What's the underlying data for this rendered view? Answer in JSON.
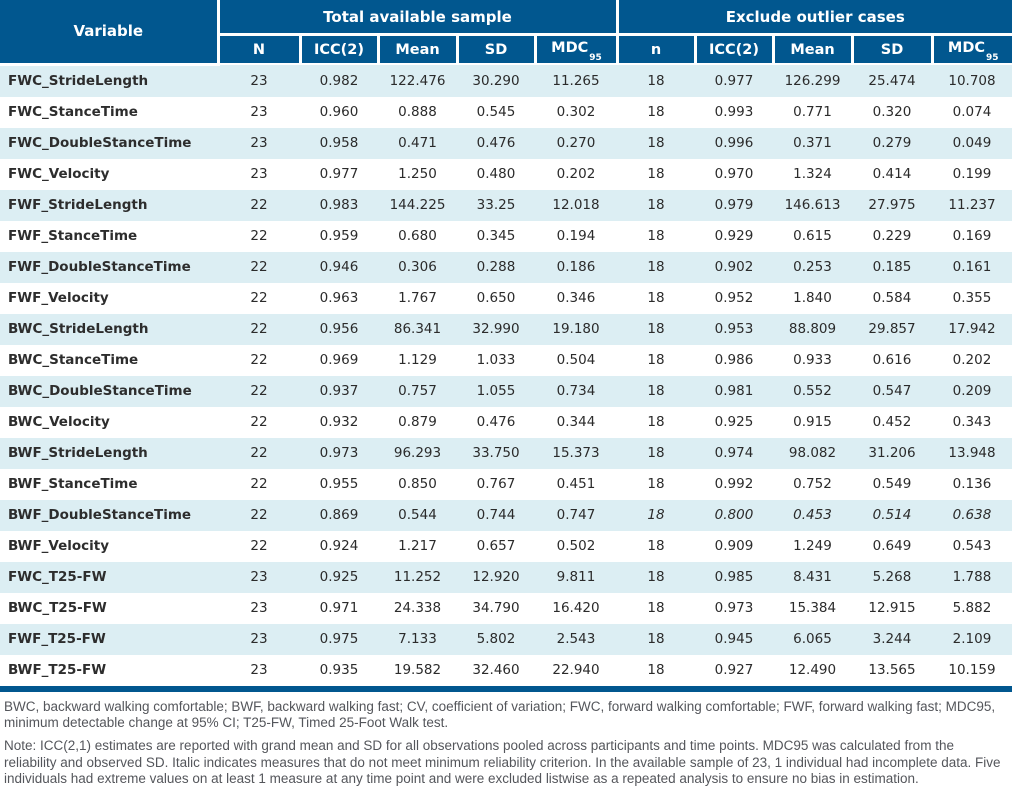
{
  "table": {
    "variable_header": "Variable",
    "group_headers": {
      "total": "Total available sample",
      "exclude": "Exclude outlier cases"
    },
    "columns": {
      "n_total": "N",
      "icc": "ICC(2)",
      "mean": "Mean",
      "sd": "SD",
      "mdc_base": "MDC",
      "mdc_sub": "95",
      "n_exclude": "n"
    },
    "rows": [
      {
        "variable": "FWC_StrideLength",
        "total": [
          "23",
          "0.982",
          "122.476",
          "30.290",
          "11.265"
        ],
        "exclude": [
          "18",
          "0.977",
          "126.299",
          "25.474",
          "10.708"
        ],
        "exclude_italic": false
      },
      {
        "variable": "FWC_StanceTime",
        "total": [
          "23",
          "0.960",
          "0.888",
          "0.545",
          "0.302"
        ],
        "exclude": [
          "18",
          "0.993",
          "0.771",
          "0.320",
          "0.074"
        ],
        "exclude_italic": false
      },
      {
        "variable": "FWC_DoubleStanceTime",
        "total": [
          "23",
          "0.958",
          "0.471",
          "0.476",
          "0.270"
        ],
        "exclude": [
          "18",
          "0.996",
          "0.371",
          "0.279",
          "0.049"
        ],
        "exclude_italic": false
      },
      {
        "variable": "FWC_Velocity",
        "total": [
          "23",
          "0.977",
          "1.250",
          "0.480",
          "0.202"
        ],
        "exclude": [
          "18",
          "0.970",
          "1.324",
          "0.414",
          "0.199"
        ],
        "exclude_italic": false
      },
      {
        "variable": "FWF_StrideLength",
        "total": [
          "22",
          "0.983",
          "144.225",
          "33.25",
          "12.018"
        ],
        "exclude": [
          "18",
          "0.979",
          "146.613",
          "27.975",
          "11.237"
        ],
        "exclude_italic": false
      },
      {
        "variable": "FWF_StanceTime",
        "total": [
          "22",
          "0.959",
          "0.680",
          "0.345",
          "0.194"
        ],
        "exclude": [
          "18",
          "0.929",
          "0.615",
          "0.229",
          "0.169"
        ],
        "exclude_italic": false
      },
      {
        "variable": "FWF_DoubleStanceTime",
        "total": [
          "22",
          "0.946",
          "0.306",
          "0.288",
          "0.186"
        ],
        "exclude": [
          "18",
          "0.902",
          "0.253",
          "0.185",
          "0.161"
        ],
        "exclude_italic": false
      },
      {
        "variable": "FWF_Velocity",
        "total": [
          "22",
          "0.963",
          "1.767",
          "0.650",
          "0.346"
        ],
        "exclude": [
          "18",
          "0.952",
          "1.840",
          "0.584",
          "0.355"
        ],
        "exclude_italic": false
      },
      {
        "variable": "BWC_StrideLength",
        "total": [
          "22",
          "0.956",
          "86.341",
          "32.990",
          "19.180"
        ],
        "exclude": [
          "18",
          "0.953",
          "88.809",
          "29.857",
          "17.942"
        ],
        "exclude_italic": false
      },
      {
        "variable": "BWC_StanceTime",
        "total": [
          "22",
          "0.969",
          "1.129",
          "1.033",
          "0.504"
        ],
        "exclude": [
          "18",
          "0.986",
          "0.933",
          "0.616",
          "0.202"
        ],
        "exclude_italic": false
      },
      {
        "variable": "BWC_DoubleStanceTime",
        "total": [
          "22",
          "0.937",
          "0.757",
          "1.055",
          "0.734"
        ],
        "exclude": [
          "18",
          "0.981",
          "0.552",
          "0.547",
          "0.209"
        ],
        "exclude_italic": false
      },
      {
        "variable": "BWC_Velocity",
        "total": [
          "22",
          "0.932",
          "0.879",
          "0.476",
          "0.344"
        ],
        "exclude": [
          "18",
          "0.925",
          "0.915",
          "0.452",
          "0.343"
        ],
        "exclude_italic": false
      },
      {
        "variable": "BWF_StrideLength",
        "total": [
          "22",
          "0.973",
          "96.293",
          "33.750",
          "15.373"
        ],
        "exclude": [
          "18",
          "0.974",
          "98.082",
          "31.206",
          "13.948"
        ],
        "exclude_italic": false
      },
      {
        "variable": "BWF_StanceTime",
        "total": [
          "22",
          "0.955",
          "0.850",
          "0.767",
          "0.451"
        ],
        "exclude": [
          "18",
          "0.992",
          "0.752",
          "0.549",
          "0.136"
        ],
        "exclude_italic": false
      },
      {
        "variable": "BWF_DoubleStanceTime",
        "total": [
          "22",
          "0.869",
          "0.544",
          "0.744",
          "0.747"
        ],
        "exclude": [
          "18",
          "0.800",
          "0.453",
          "0.514",
          "0.638"
        ],
        "exclude_italic": true
      },
      {
        "variable": "BWF_Velocity",
        "total": [
          "22",
          "0.924",
          "1.217",
          "0.657",
          "0.502"
        ],
        "exclude": [
          "18",
          "0.909",
          "1.249",
          "0.649",
          "0.543"
        ],
        "exclude_italic": false
      },
      {
        "variable": "FWC_T25-FW",
        "total": [
          "23",
          "0.925",
          "11.252",
          "12.920",
          "9.811"
        ],
        "exclude": [
          "18",
          "0.985",
          "8.431",
          "5.268",
          "1.788"
        ],
        "exclude_italic": false
      },
      {
        "variable": "BWC_T25-FW",
        "total": [
          "23",
          "0.971",
          "24.338",
          "34.790",
          "16.420"
        ],
        "exclude": [
          "18",
          "0.973",
          "15.384",
          "12.915",
          "5.882"
        ],
        "exclude_italic": false
      },
      {
        "variable": "FWF_T25-FW",
        "total": [
          "23",
          "0.975",
          "7.133",
          "5.802",
          "2.543"
        ],
        "exclude": [
          "18",
          "0.945",
          "6.065",
          "3.244",
          "2.109"
        ],
        "exclude_italic": false
      },
      {
        "variable": "BWF_T25-FW",
        "total": [
          "23",
          "0.935",
          "19.582",
          "32.460",
          "22.940"
        ],
        "exclude": [
          "18",
          "0.927",
          "12.490",
          "13.565",
          "10.159"
        ],
        "exclude_italic": false
      }
    ]
  },
  "footer": {
    "abbreviations": "BWC, backward walking comfortable; BWF, backward walking fast; CV, coefficient of variation; FWC, forward walking comfortable; FWF, forward walking fast; MDC95, minimum detectable change at 95% CI; T25-FW, Timed 25-Foot Walk test.",
    "note": "Note: ICC(2,1) estimates are reported with grand mean and SD for all observations pooled across participants and time points. MDC95 was calculated from the reliability and observed SD. Italic indicates measures that do not meet minimum reliability criterion. In the available sample of 23, 1 individual had incomplete data. Five individuals had extreme values on at least 1 measure at any time point and were excluded listwise as a repeated analysis to ensure no bias in estimation."
  },
  "colors": {
    "header_bg": "#01578f",
    "stripe_bg": "#dceef3",
    "body_text": "#2b2b2b",
    "footer_text": "#54565b",
    "bottom_rule": "#01578f"
  }
}
